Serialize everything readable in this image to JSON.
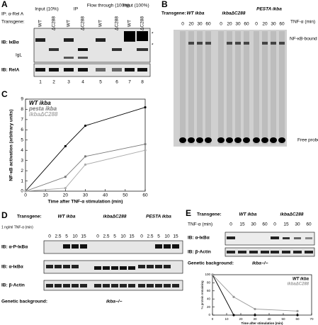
{
  "panels": {
    "a": {
      "letter": "A",
      "ip": "IP: α-Rel A",
      "transgene": "Transgene:",
      "headers": [
        "Input (10%)",
        "IP",
        "Flow through (100%)",
        "Input (100%)"
      ],
      "lanes": [
        "WT",
        "ΔC288",
        "WT",
        "ΔC288",
        "WT",
        "ΔC288",
        "WT",
        "ΔC288"
      ],
      "blots": [
        "IB: IκBα",
        "IB: RelA"
      ],
      "igl": "IgL",
      "stars": [
        "*",
        "*"
      ],
      "lane_numbers": [
        1,
        2,
        3,
        4,
        5,
        6,
        7,
        8
      ]
    },
    "b": {
      "letter": "B",
      "transgene": "Transgene:",
      "treatment": "TNF-α (min)",
      "groups": [
        {
          "name": "WT ikba",
          "times": [
            0,
            20,
            30,
            60
          ]
        },
        {
          "name": "ikbaΔC288",
          "times": [
            0,
            20,
            30,
            60
          ]
        },
        {
          "name": "PESTA ikba",
          "times": [
            0,
            20,
            30,
            60
          ]
        }
      ],
      "bound": "NF-κB-bound probe",
      "free": "Free probe"
    },
    "c": {
      "letter": "C"
    },
    "d": {
      "letter": "D",
      "transgene": "Transgene:",
      "treatment": "1 ng/ml TNF-α (min)",
      "groups": [
        {
          "name": "WT ikba",
          "times": [
            0,
            2.5,
            5,
            10,
            15
          ]
        },
        {
          "name": "ikbaΔC288",
          "times": [
            0,
            2.5,
            5,
            10,
            15
          ]
        },
        {
          "name": "PESTA ikba",
          "times": [
            0,
            2.5,
            5,
            10,
            15
          ]
        }
      ],
      "blots": [
        "IB: α-P-IκBα",
        "IB: α-IκBα",
        "IB: β-Actin"
      ],
      "background": "Genetic background:",
      "genotype": "ikba−/−"
    },
    "e": {
      "letter": "E",
      "transgene": "Transgene:",
      "treatment": "TNF-α (min)",
      "groups": [
        {
          "name": "WT ikba",
          "times": [
            0,
            15,
            30,
            60
          ]
        },
        {
          "name": "ikbaΔC288",
          "times": [
            0,
            15,
            30,
            60
          ]
        }
      ],
      "blots": [
        "IB: α-IκBα",
        "IB: β-Actin"
      ],
      "background": "Genetic background:",
      "genotype": "ikba−/−"
    }
  },
  "chart_data": [
    {
      "type": "line",
      "x_label": "Time after TNF-α stimulation (min)",
      "y_label": "NF-κB activation (arbitrary units)",
      "xlim": [
        0,
        60
      ],
      "xticks": [
        0,
        10,
        20,
        30,
        40,
        50,
        60
      ],
      "ylim": [
        0,
        9
      ],
      "yticks": [
        0,
        1,
        2,
        3,
        4,
        5,
        6,
        7,
        8,
        9
      ],
      "series": [
        {
          "name": "WT ikba",
          "color": "#000000",
          "x": [
            0,
            20,
            30,
            60
          ],
          "values": [
            0,
            4.4,
            6.4,
            8.2
          ]
        },
        {
          "name": "pesta ikba",
          "color": "#777777",
          "x": [
            0,
            20,
            30,
            60
          ],
          "values": [
            0,
            1.4,
            3.4,
            4.6
          ]
        },
        {
          "name": "ikbaΔC288",
          "color": "#aaaaaa",
          "x": [
            0,
            20,
            30,
            60
          ],
          "values": [
            0,
            0.3,
            2.6,
            4.0
          ]
        }
      ]
    },
    {
      "type": "scatter",
      "x_label": "Time after stimulation (min)",
      "y_label": "% protein remaining",
      "xlim": [
        0,
        70
      ],
      "xticks": [
        0,
        10,
        20,
        30,
        40,
        50,
        60,
        70
      ],
      "ylim": [
        0,
        100
      ],
      "yticks": [
        0,
        20,
        40,
        60,
        80,
        100
      ],
      "series": [
        {
          "name": "WT ikba",
          "color": "#000000",
          "x": [
            0,
            15,
            30,
            60
          ],
          "values": [
            100,
            0,
            0,
            0
          ]
        },
        {
          "name": "ikbaΔC288",
          "color": "#999999",
          "x": [
            0,
            15,
            30,
            60
          ],
          "values": [
            100,
            45,
            15,
            10
          ]
        }
      ]
    }
  ]
}
